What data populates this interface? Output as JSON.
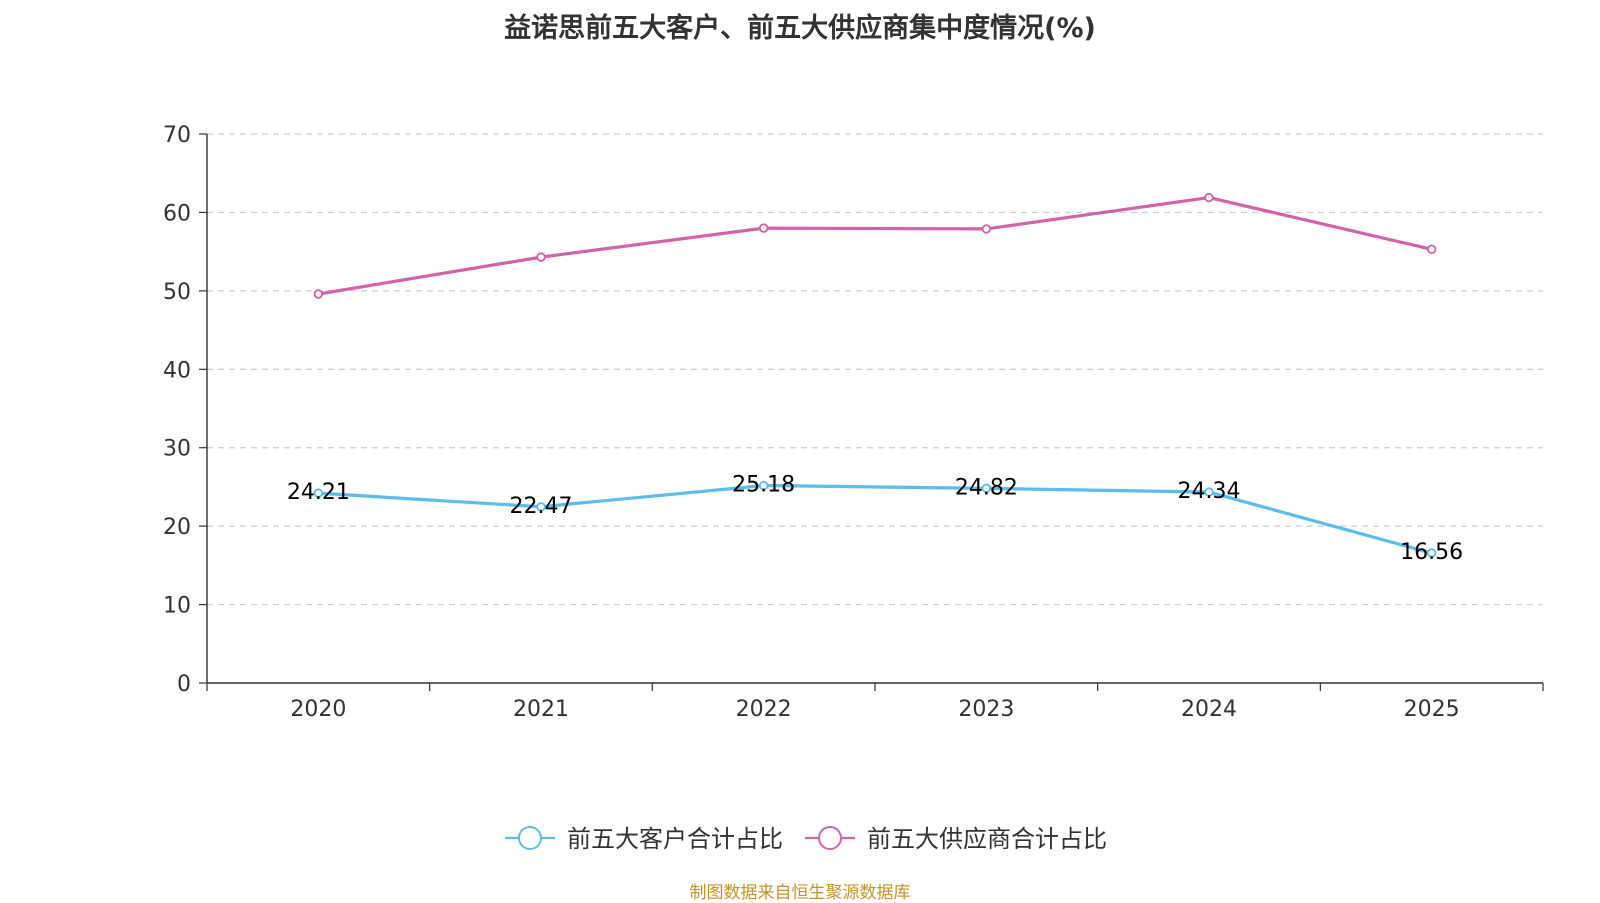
{
  "chart_data": {
    "type": "line",
    "title": "益诺思前五大客户、前五大供应商集中度情况(%)",
    "categories": [
      "2020",
      "2021",
      "2022",
      "2023",
      "2024",
      "2025"
    ],
    "ylim": [
      0,
      70
    ],
    "yticks": [
      0,
      10,
      20,
      30,
      40,
      50,
      60,
      70
    ],
    "grid": true,
    "legend_position": "bottom-center",
    "series": [
      {
        "name": "前五大客户合计占比",
        "color": "#5bbcef",
        "values": [
          24.21,
          22.47,
          25.18,
          24.82,
          24.34,
          16.56
        ],
        "labels": [
          "24.21",
          "22.47",
          "25.18",
          "24.82",
          "24.34",
          "16.56"
        ],
        "show_labels": true
      },
      {
        "name": "前五大供应商合计占比",
        "color": "#d263a8",
        "values": [
          49.6,
          54.3,
          58.0,
          57.9,
          61.9,
          55.3
        ],
        "show_labels": false
      }
    ]
  },
  "source_note": "制图数据来自恒生聚源数据库"
}
